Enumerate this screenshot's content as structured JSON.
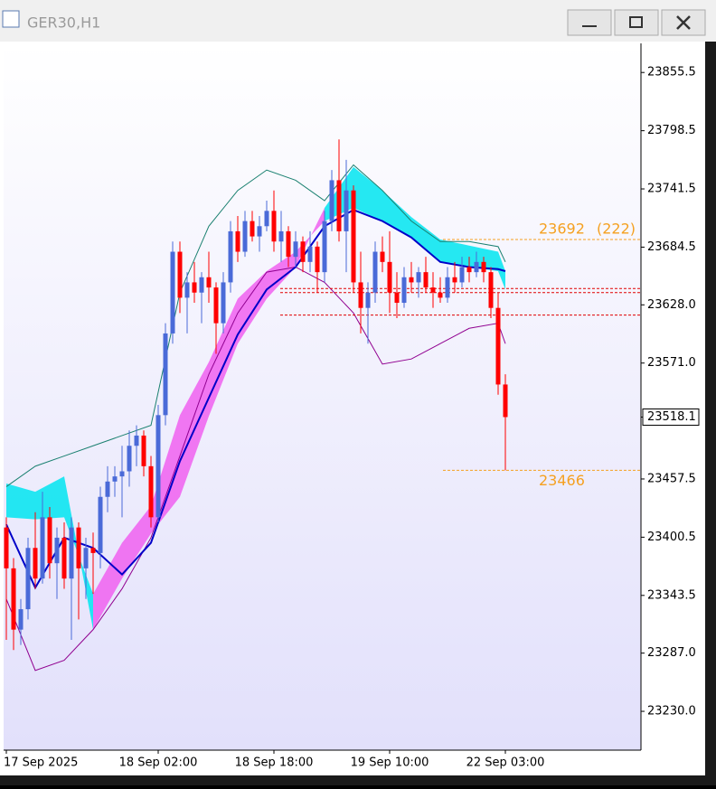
{
  "window": {
    "title": "GER30,H1"
  },
  "chart_data": {
    "type": "candlestick",
    "categories": [
      "17 Sep 2025",
      null,
      null,
      null,
      null,
      null,
      null,
      null,
      null,
      null,
      null,
      null,
      null,
      null,
      null,
      null,
      null,
      null,
      null,
      null,
      null,
      "18 Sep 02:00",
      null,
      null,
      null,
      null,
      null,
      null,
      null,
      null,
      null,
      null,
      null,
      null,
      null,
      null,
      null,
      "18 Sep 18:00",
      null,
      null,
      null,
      null,
      null,
      null,
      null,
      null,
      null,
      null,
      null,
      null,
      null,
      null,
      null,
      "19 Sep 10:00",
      null,
      null,
      null,
      null,
      null,
      null,
      null,
      null,
      null,
      null,
      null,
      null,
      null,
      null,
      null,
      "22 Sep 03:00"
    ],
    "open": [
      23410,
      23370,
      23310,
      23330,
      23390,
      23360,
      23420,
      23375,
      23400,
      23360,
      23410,
      23370,
      23390,
      23385,
      23440,
      23455,
      23460,
      23465,
      23490,
      23500,
      23470,
      23420,
      23520,
      23600,
      23680,
      23635,
      23650,
      23640,
      23655,
      23645,
      23610,
      23650,
      23700,
      23680,
      23710,
      23695,
      23705,
      23720,
      23690,
      23700,
      23675,
      23690,
      23670,
      23685,
      23660,
      23710,
      23750,
      23700,
      23740,
      23650,
      23625,
      23640,
      23680,
      23670,
      23640,
      23630,
      23655,
      23650,
      23660,
      23645,
      23640,
      23635,
      23655,
      23650,
      23665,
      23660,
      23670,
      23660,
      23625,
      23550
    ],
    "high": [
      23420,
      23380,
      23340,
      23400,
      23425,
      23445,
      23430,
      23410,
      23415,
      23420,
      23415,
      23400,
      23405,
      23450,
      23470,
      23470,
      23490,
      23505,
      23510,
      23505,
      23480,
      23530,
      23610,
      23690,
      23690,
      23660,
      23670,
      23660,
      23680,
      23650,
      23660,
      23710,
      23715,
      23720,
      23720,
      23715,
      23730,
      23740,
      23720,
      23705,
      23700,
      23695,
      23700,
      23690,
      23720,
      23760,
      23790,
      23770,
      23745,
      23680,
      23650,
      23690,
      23695,
      23700,
      23660,
      23665,
      23670,
      23665,
      23675,
      23660,
      23655,
      23665,
      23670,
      23675,
      23675,
      23680,
      23675,
      23665,
      23640,
      23560
    ],
    "low": [
      23300,
      23290,
      23295,
      23320,
      23350,
      23355,
      23360,
      23340,
      23350,
      23300,
      23320,
      23340,
      23345,
      23370,
      23425,
      23440,
      23420,
      23450,
      23470,
      23460,
      23410,
      23415,
      23510,
      23590,
      23620,
      23600,
      23630,
      23610,
      23630,
      23580,
      23600,
      23640,
      23670,
      23675,
      23690,
      23680,
      23700,
      23680,
      23670,
      23665,
      23665,
      23660,
      23660,
      23640,
      23650,
      23700,
      23690,
      23660,
      23640,
      23600,
      23590,
      23630,
      23660,
      23620,
      23615,
      23625,
      23640,
      23635,
      23640,
      23625,
      23630,
      23630,
      23640,
      23645,
      23650,
      23655,
      23650,
      23615,
      23540,
      23466
    ],
    "close": [
      23370,
      23310,
      23330,
      23390,
      23360,
      23420,
      23375,
      23400,
      23360,
      23410,
      23370,
      23390,
      23385,
      23440,
      23455,
      23460,
      23465,
      23490,
      23500,
      23470,
      23420,
      23520,
      23600,
      23680,
      23635,
      23650,
      23640,
      23655,
      23645,
      23610,
      23650,
      23700,
      23680,
      23710,
      23695,
      23705,
      23720,
      23690,
      23700,
      23675,
      23690,
      23670,
      23685,
      23660,
      23710,
      23750,
      23700,
      23740,
      23650,
      23625,
      23640,
      23680,
      23670,
      23640,
      23630,
      23655,
      23650,
      23660,
      23645,
      23640,
      23635,
      23655,
      23650,
      23665,
      23660,
      23670,
      23660,
      23625,
      23550,
      23518.1
    ],
    "up_color": "#4a6ad8",
    "down_color": "#ff0000",
    "indicator_x": [
      0,
      4,
      8,
      12,
      16,
      20,
      24,
      28,
      32,
      36,
      40,
      44,
      48,
      52,
      56,
      60,
      64,
      68,
      69
    ],
    "base_line": {
      "color": "#0000c8",
      "values": [
        23413,
        23351,
        23400,
        23390,
        23364,
        23395,
        23475,
        23537,
        23599,
        23643,
        23665,
        23705,
        23721,
        23710,
        23694,
        23670,
        23665,
        23663,
        23661
      ]
    },
    "cloud": {
      "up_color": "#00e5f0",
      "down_color": "#f060f0",
      "span_a": [
        23453,
        23445,
        23460,
        23310,
        23360,
        23404,
        23440,
        23519,
        23590,
        23634,
        23665,
        23723,
        23763,
        23740,
        23714,
        23692,
        23686,
        23680,
        23661
      ],
      "span_b": [
        23420,
        23418,
        23420,
        23345,
        23395,
        23431,
        23520,
        23572,
        23634,
        23661,
        23680,
        23710,
        23723,
        23710,
        23694,
        23670,
        23665,
        23661,
        23643
      ]
    },
    "upper_band": {
      "color": "#1a8070",
      "values": [
        23450,
        23470,
        23480,
        23490,
        23500,
        23510,
        23640,
        23705,
        23740,
        23760,
        23750,
        23730,
        23765,
        23740,
        23710,
        23690,
        23690,
        23685,
        23670
      ]
    },
    "lower_band": {
      "color": "#900090",
      "values": [
        23340,
        23270,
        23280,
        23310,
        23350,
        23400,
        23480,
        23560,
        23620,
        23660,
        23665,
        23650,
        23620,
        23570,
        23575,
        23590,
        23605,
        23610,
        23590
      ]
    },
    "levels": {
      "color": "#e00000",
      "values": [
        23644,
        23640,
        23618
      ]
    },
    "annotations": [
      {
        "value": 23692,
        "note": "(222)"
      },
      {
        "value": 23466
      }
    ],
    "annotation_color": "#f5a020",
    "ylim": [
      23192,
      23884
    ],
    "yticks": [
      23855.5,
      23798.5,
      23741.5,
      23684.5,
      {
        "value": 23628,
        "label": "23628.0"
      },
      {
        "value": 23571,
        "label": "23571.0"
      },
      23518.1,
      23457.5,
      23400.5,
      23343.5,
      {
        "value": 23287,
        "label": "23287.0"
      },
      {
        "value": 23230,
        "label": "23230.0"
      }
    ]
  }
}
